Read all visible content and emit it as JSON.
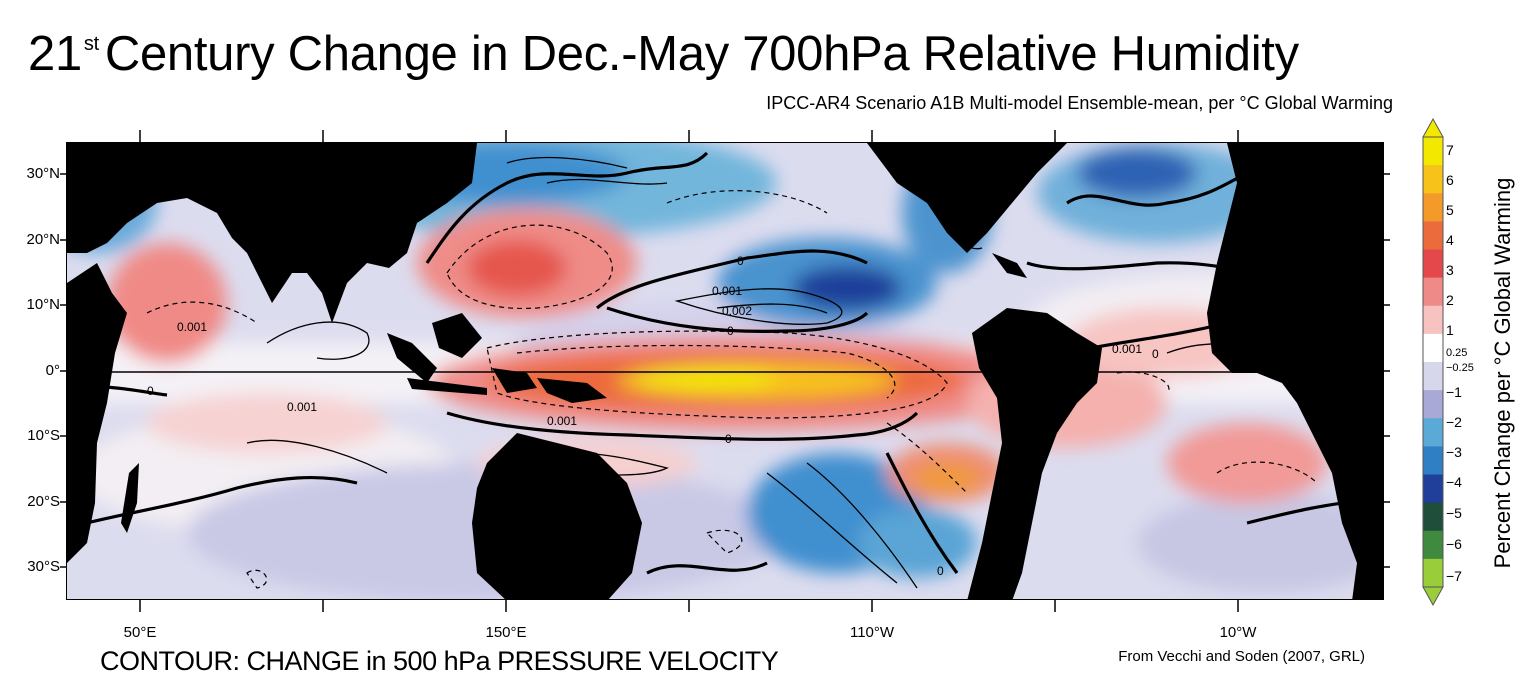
{
  "title": {
    "main_prefix": "21",
    "superscript": "st",
    "main_rest": "Century Change in Dec.-May 700hPa Relative Humidity",
    "subtitle": "IPCC-AR4 Scenario A1B Multi-model Ensemble-mean, per °C Global Warming"
  },
  "axes": {
    "lat_labels": [
      "30°N",
      "20°N",
      "10°N",
      "0°",
      "10°S",
      "20°S",
      "30°S"
    ],
    "lon_labels": [
      "50°E",
      "150°E",
      "110°W",
      "10°W"
    ]
  },
  "colorbar": {
    "title": "Percent Change per °C Global Warming",
    "ticks": [
      "7",
      "6",
      "5",
      "4",
      "3",
      "2",
      "1",
      "0.25",
      "−0.25",
      "−1",
      "−2",
      "−3",
      "−4",
      "−5",
      "−6",
      "−7"
    ],
    "colors": [
      "#f2e800",
      "#f7c21a",
      "#f39a2a",
      "#ec6b3d",
      "#e5484a",
      "#ee8a88",
      "#f6c3c0",
      "#ffffff",
      "#d7d7ec",
      "#a9a9d8",
      "#5aa9d6",
      "#2f7fc4",
      "#1f3f9a",
      "#1f4f3a",
      "#3f8a3f",
      "#9acd3a"
    ]
  },
  "contour_labels": [
    "0",
    "0.001",
    "0.002"
  ],
  "captions": {
    "contour": "CONTOUR: CHANGE in 500 hPa PRESSURE VELOCITY",
    "credit": "From Vecchi and Soden (2007, GRL)"
  }
}
